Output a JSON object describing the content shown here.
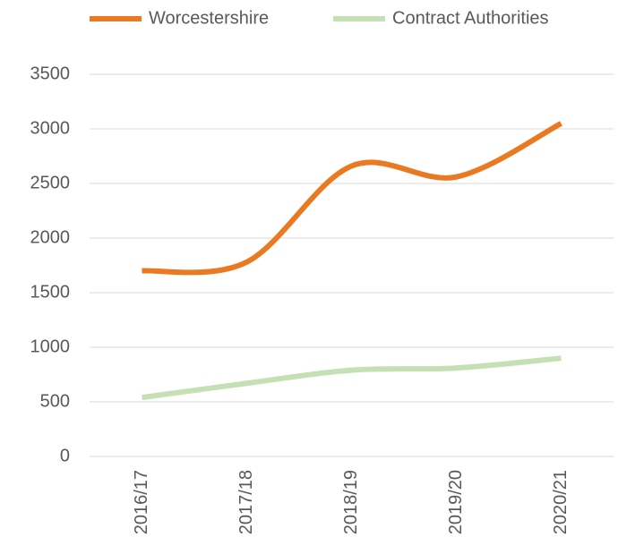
{
  "chart_data": {
    "type": "line",
    "categories": [
      "2016/17",
      "2017/18",
      "2018/19",
      "2019/20",
      "2020/21"
    ],
    "series": [
      {
        "name": "Worcestershire",
        "color": "#e97a22",
        "values": [
          1700,
          1780,
          2660,
          2560,
          3050
        ]
      },
      {
        "name": "Contract Authorities",
        "color": "#c5e0b4",
        "values": [
          540,
          670,
          790,
          810,
          900
        ]
      }
    ],
    "ylim": [
      0,
      3500
    ],
    "yticks": [
      0,
      500,
      1000,
      1500,
      2000,
      2500,
      3000,
      3500
    ],
    "grid": true,
    "smooth": true,
    "legend": "top"
  }
}
